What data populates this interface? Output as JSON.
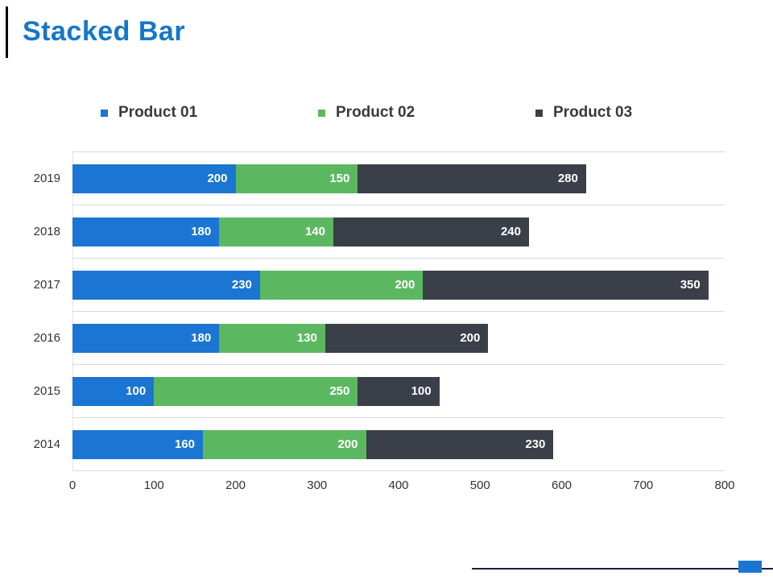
{
  "slide": {
    "title": "Stacked Bar"
  },
  "chart_data": {
    "type": "bar",
    "orientation": "horizontal",
    "stacked": true,
    "title": "Stacked Bar",
    "categories": [
      "2019",
      "2018",
      "2017",
      "2016",
      "2015",
      "2014"
    ],
    "series": [
      {
        "name": "Product 01",
        "color": "#1B75D2",
        "values": [
          200,
          180,
          230,
          180,
          100,
          160
        ]
      },
      {
        "name": "Product 02",
        "color": "#5CB860",
        "values": [
          150,
          140,
          200,
          130,
          250,
          200
        ]
      },
      {
        "name": "Product 03",
        "color": "#3A3F49",
        "values": [
          280,
          240,
          350,
          200,
          100,
          230
        ]
      }
    ],
    "totals": [
      630,
      560,
      780,
      510,
      450,
      590
    ],
    "xlim": [
      0,
      800
    ],
    "xticks": [
      0,
      100,
      200,
      300,
      400,
      500,
      600,
      700,
      800
    ],
    "xlabel": "",
    "ylabel": "",
    "value_labels": "inside-end",
    "legend_position": "top",
    "grid": "horizontal-category-lines"
  },
  "footer": {
    "line_color": "#1d2433",
    "accent_color": "#1B75D2"
  }
}
